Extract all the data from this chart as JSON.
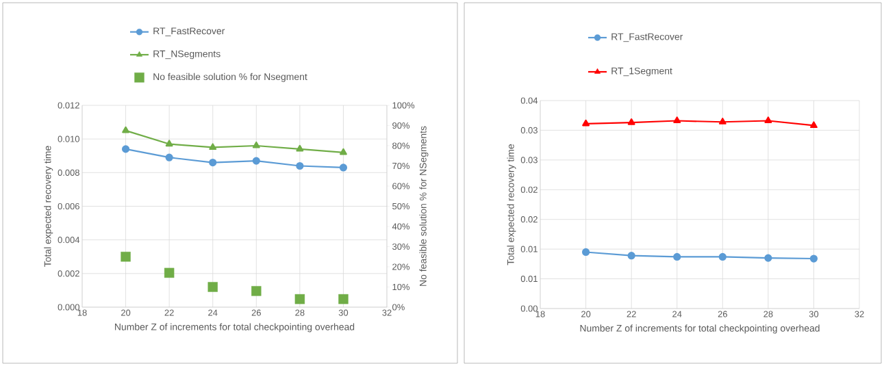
{
  "chart_data": [
    {
      "type": "line",
      "x": [
        20,
        22,
        24,
        26,
        28,
        30
      ],
      "xlabel": "Number Z of increments for total checkpointing overhead",
      "ylabel": "Total expected recovery time",
      "y2label": "No feasible solution % for NSegments",
      "xlim": [
        18,
        32
      ],
      "xticks": [
        18,
        20,
        22,
        24,
        26,
        28,
        30,
        32
      ],
      "ylim": [
        0,
        0.012
      ],
      "yticks": [
        {
          "value": 0,
          "label": "0.000"
        },
        {
          "value": 0.002,
          "label": "0.002"
        },
        {
          "value": 0.004,
          "label": "0.004"
        },
        {
          "value": 0.006,
          "label": "0.006"
        },
        {
          "value": 0.008,
          "label": "0.008"
        },
        {
          "value": 0.01,
          "label": "0.010"
        },
        {
          "value": 0.012,
          "label": "0.012"
        }
      ],
      "y2lim": [
        0,
        100
      ],
      "y2ticks": [
        {
          "value": 0,
          "label": "0%"
        },
        {
          "value": 10,
          "label": "10%"
        },
        {
          "value": 20,
          "label": "20%"
        },
        {
          "value": 30,
          "label": "30%"
        },
        {
          "value": 40,
          "label": "40%"
        },
        {
          "value": 50,
          "label": "50%"
        },
        {
          "value": 60,
          "label": "60%"
        },
        {
          "value": 70,
          "label": "70%"
        },
        {
          "value": 80,
          "label": "80%"
        },
        {
          "value": 90,
          "label": "90%"
        },
        {
          "value": 100,
          "label": "100%"
        }
      ],
      "grid": true,
      "legend": "top",
      "series": [
        {
          "name": "RT_FastRecover",
          "color": "#5b9bd5",
          "marker": "circle",
          "values": [
            0.0094,
            0.0089,
            0.0086,
            0.0087,
            0.0084,
            0.0083
          ]
        },
        {
          "name": "RT_NSegments",
          "color": "#70ad47",
          "marker": "triangle",
          "values": [
            0.0105,
            0.0097,
            0.0095,
            0.0096,
            0.0094,
            0.0092
          ]
        },
        {
          "name": "No feasible solution % for Nsegment",
          "type": "scatter",
          "axis": "y2",
          "color": "#70ad47",
          "marker": "square",
          "values": [
            25,
            17,
            10,
            8,
            4,
            4
          ]
        }
      ]
    },
    {
      "type": "line",
      "x": [
        20,
        22,
        24,
        26,
        28,
        30
      ],
      "xlabel": "Number Z of increments for total checkpointing overhead",
      "ylabel": "Total expected recovery time",
      "xlim": [
        18,
        32
      ],
      "xticks": [
        18,
        20,
        22,
        24,
        26,
        28,
        30,
        32
      ],
      "ylim": [
        0,
        0.035
      ],
      "yticks": [
        {
          "value": 0,
          "label": "0.00"
        },
        {
          "value": 0.005,
          "label": "0.01"
        },
        {
          "value": 0.01,
          "label": "0.01"
        },
        {
          "value": 0.015,
          "label": "0.02"
        },
        {
          "value": 0.02,
          "label": "0.02"
        },
        {
          "value": 0.025,
          "label": "0.03"
        },
        {
          "value": 0.03,
          "label": "0.03"
        },
        {
          "value": 0.035,
          "label": "0.04"
        }
      ],
      "grid": true,
      "legend": "top",
      "series": [
        {
          "name": "RT_FastRecover",
          "color": "#5b9bd5",
          "marker": "circle",
          "values": [
            0.0095,
            0.0089,
            0.0087,
            0.0087,
            0.0085,
            0.0084
          ]
        },
        {
          "name": "RT_1Segment",
          "color": "#ff0000",
          "marker": "triangle",
          "values": [
            0.0311,
            0.0313,
            0.0316,
            0.0314,
            0.0316,
            0.0308
          ]
        }
      ]
    }
  ]
}
